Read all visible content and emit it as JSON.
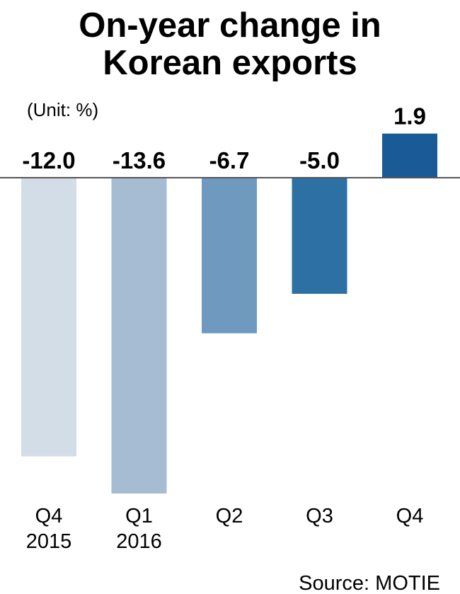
{
  "chart_data": {
    "type": "bar",
    "title_lines": [
      "On-year change in",
      "Korean exports"
    ],
    "unit_label": "(Unit: %)",
    "categories": [
      [
        "Q4",
        "2015"
      ],
      [
        "Q1",
        "2016"
      ],
      [
        "Q2"
      ],
      [
        "Q3"
      ],
      [
        "Q4"
      ]
    ],
    "values": [
      -12.0,
      -13.6,
      -6.7,
      -5.0,
      1.9
    ],
    "value_labels": [
      "-12.0",
      "-13.6",
      "-6.7",
      "-5.0",
      "1.9"
    ],
    "colors": [
      "#d3dde8",
      "#a6bcd3",
      "#7099bf",
      "#2d70a4",
      "#1a5b97"
    ],
    "baseline_color": "#555555",
    "source": "Source: MOTIE",
    "grid": false,
    "legend": "none"
  }
}
